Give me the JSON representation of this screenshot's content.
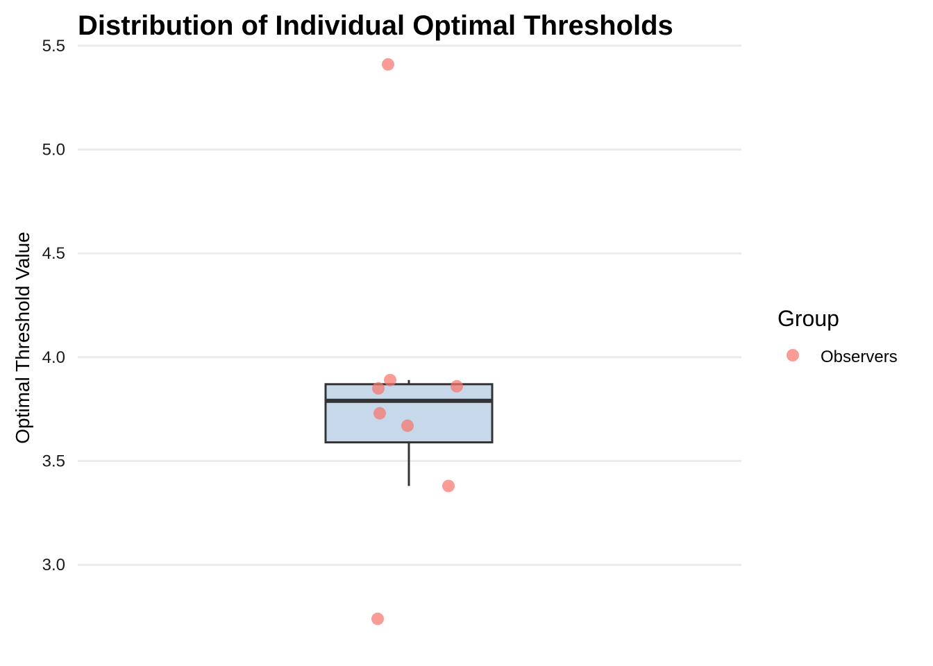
{
  "chart_data": {
    "type": "box",
    "title": "Distribution of Individual Optimal Thresholds",
    "xlabel": "",
    "ylabel": "Optimal Threshold Value",
    "ylim": [
      2.68,
      5.62
    ],
    "yticks": [
      3.0,
      3.5,
      4.0,
      4.5,
      5.0,
      5.5
    ],
    "ytick_labels": [
      "3.0",
      "3.5",
      "4.0",
      "4.5",
      "5.0",
      "5.5"
    ],
    "grid": true,
    "legend": {
      "title": "Group",
      "position": "right",
      "entries": [
        {
          "name": "Observers",
          "color": "#F8766D"
        }
      ]
    },
    "box": {
      "lower_whisker": 3.38,
      "q1": 3.59,
      "median": 3.79,
      "q3": 3.87,
      "upper_whisker": 3.89,
      "fill": "#C6D8EA",
      "stroke": "#333333"
    },
    "points": {
      "series": "Observers",
      "color": "#F8766D",
      "values": [
        5.41,
        3.89,
        3.86,
        3.85,
        3.73,
        3.67,
        3.38,
        2.74
      ]
    }
  }
}
